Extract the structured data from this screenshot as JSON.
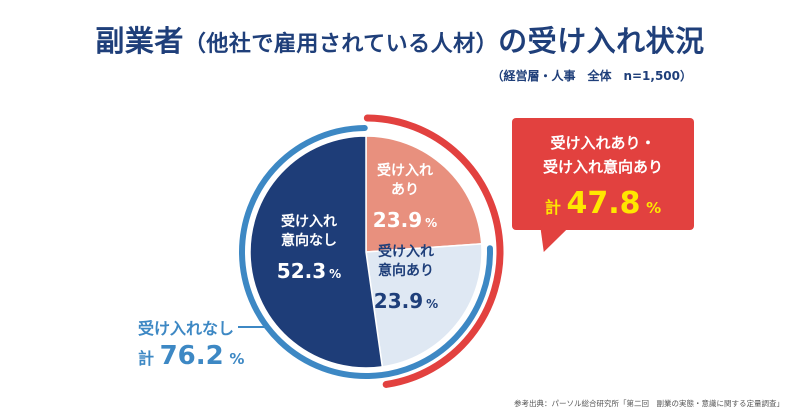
{
  "title": {
    "main": "副業者",
    "paren": "（他社で雇用されている人材）",
    "rest": "の受け入れ状況"
  },
  "subtitle": "（経営層・人事　全体　n=1,500）",
  "chart_data": {
    "type": "pie",
    "slices": [
      {
        "label_lines": [
          "受け入れ",
          "あり"
        ],
        "value": 23.9,
        "unit": "%",
        "color": "#e8907e"
      },
      {
        "label_lines": [
          "受け入れ",
          "意向あり"
        ],
        "value": 23.9,
        "unit": "%",
        "color": "#dfe8f3"
      },
      {
        "label_lines": [
          "受け入れ",
          "意向なし"
        ],
        "value": 52.3,
        "unit": "%",
        "color": "#1e3d78"
      }
    ],
    "groups": [
      {
        "label_lines": [
          "受け入れあり・",
          "受け入れ意向あり"
        ],
        "prefix": "計",
        "value": 47.8,
        "unit": "%",
        "color": "#e2413f"
      },
      {
        "label": "受け入れなし",
        "prefix": "計",
        "value": 76.2,
        "unit": "%",
        "color": "#3d88c4"
      }
    ]
  },
  "source": "参考出典：パーソル総合研究所「第二回　副業の実態・意識に関する定量調査」"
}
